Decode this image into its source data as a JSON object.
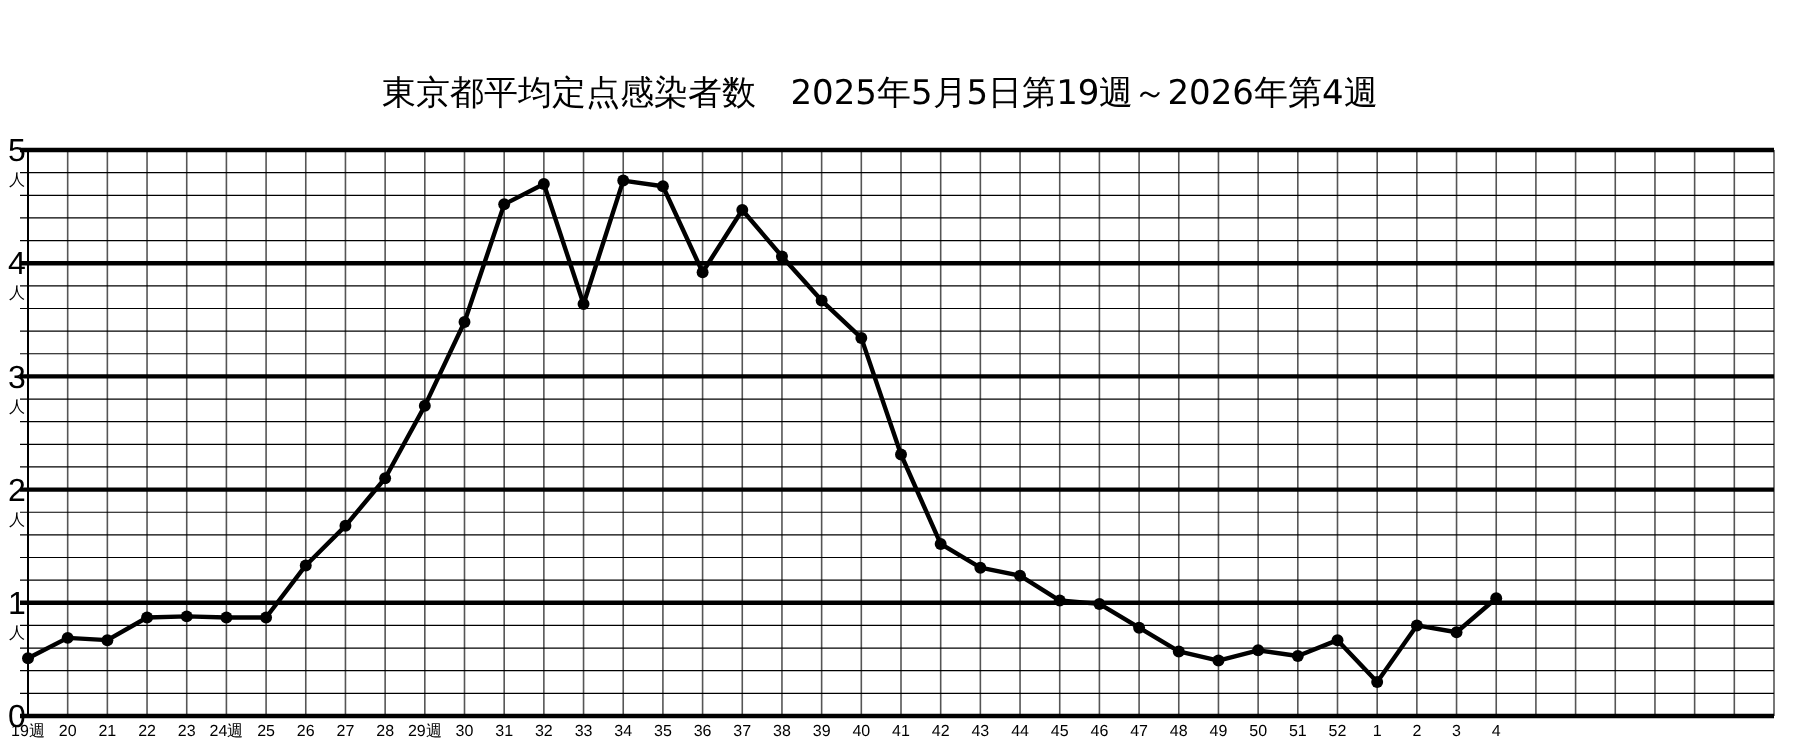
{
  "chart_data": {
    "type": "line",
    "title": "東京都平均定点感染者数　2025年5月5日第19週～2026年第4週",
    "categories": [
      "19週",
      "20",
      "21",
      "22",
      "23",
      "24週",
      "25",
      "26",
      "27",
      "28",
      "29週",
      "30",
      "31",
      "32",
      "33",
      "34",
      "35",
      "36",
      "37",
      "38",
      "39",
      "40",
      "41",
      "42",
      "43",
      "44",
      "45",
      "46",
      "47",
      "48",
      "49",
      "50",
      "51",
      "52",
      "1",
      "2",
      "3",
      "4",
      null,
      null,
      null,
      null,
      null,
      null,
      null
    ],
    "series": [
      {
        "color": "#000000",
        "values": [
          0.51,
          0.69,
          0.67,
          0.87,
          0.88,
          0.87,
          0.87,
          1.33,
          1.68,
          2.1,
          2.74,
          3.48,
          4.52,
          4.7,
          3.64,
          4.73,
          4.68,
          3.92,
          4.47,
          4.06,
          3.67,
          3.34,
          2.31,
          1.52,
          1.31,
          1.24,
          1.02,
          0.99,
          0.78,
          0.57,
          0.49,
          0.58,
          0.53,
          0.67,
          0.3,
          0.8,
          0.74,
          1.04,
          null,
          null,
          null,
          null,
          null,
          null,
          null
        ]
      }
    ],
    "ylim": [
      0,
      5
    ],
    "yticks": [
      0,
      {
        "value": 0.2,
        "label": null
      },
      {
        "value": 0.4,
        "label": null
      },
      {
        "value": 0.6,
        "label": null
      },
      {
        "value": 0.8,
        "label": null
      },
      {
        "value": 1,
        "label": "1$_{人}$"
      },
      {
        "value": 1.2,
        "label": null
      },
      {
        "value": 1.4,
        "label": null
      },
      {
        "value": 1.6,
        "label": null
      },
      {
        "value": 1.8,
        "label": null
      },
      {
        "value": 2,
        "label": "2$_{人}$"
      },
      {
        "value": 2.2,
        "label": null
      },
      {
        "value": 2.4,
        "label": null
      },
      {
        "value": 2.6,
        "label": null
      },
      {
        "value": 2.8,
        "label": null
      },
      {
        "value": 3,
        "label": "3$_{人}$"
      },
      {
        "value": 3.2,
        "label": null
      },
      {
        "value": 3.4,
        "label": null
      },
      {
        "value": 3.6,
        "label": null
      },
      {
        "value": 3.8,
        "label": null
      },
      {
        "value": 4,
        "label": "4$_{人}$"
      },
      {
        "value": 4.2,
        "label": null
      },
      {
        "value": 4.4,
        "label": null
      },
      {
        "value": 4.6,
        "label": null
      },
      {
        "value": 4.8,
        "label": null
      },
      {
        "value": 5,
        "label": "5$_{人}$"
      }
    ],
    "grid": true,
    "marker": "circle",
    "line_style": "solid"
  }
}
